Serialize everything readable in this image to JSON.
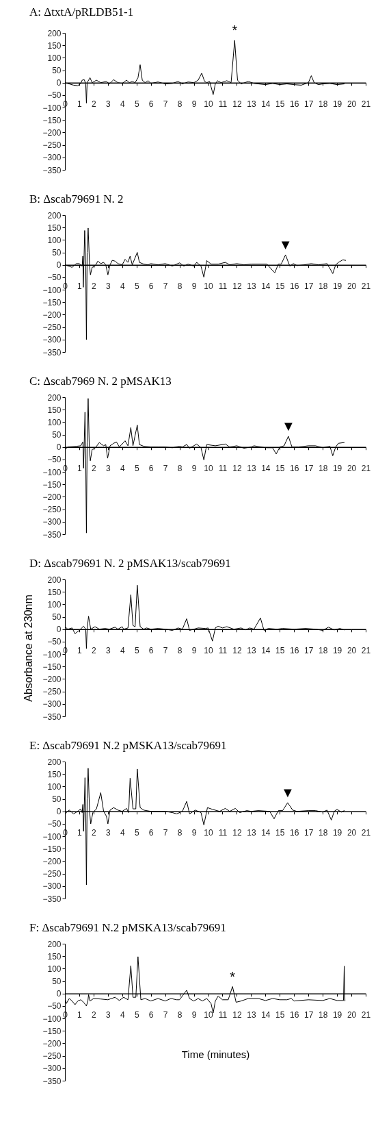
{
  "chart_data": [
    {
      "type": "line",
      "title": "A: ΔtxtA/pRLDB51-1",
      "xlim": [
        0,
        21
      ],
      "xticks": [
        0,
        1,
        2,
        3,
        4,
        5,
        6,
        7,
        8,
        9,
        10,
        11,
        12,
        13,
        14,
        15,
        16,
        17,
        18,
        19,
        20,
        21
      ],
      "ylim": [
        -350,
        200
      ],
      "yticks": [
        -350,
        -300,
        -250,
        -200,
        -150,
        -100,
        -50,
        0,
        50,
        100,
        150,
        200
      ],
      "series": [
        {
          "color": "#000000",
          "x": [
            0,
            0.3,
            0.6,
            0.9,
            1.1,
            1.2,
            1.35,
            1.45,
            1.5,
            1.55,
            1.75,
            1.9,
            2.2,
            2.5,
            2.9,
            3.1,
            3.4,
            3.7,
            4.0,
            4.3,
            4.5,
            4.7,
            4.9,
            5.1,
            5.25,
            5.4,
            5.6,
            5.8,
            6.0,
            6.5,
            7.0,
            7.5,
            7.9,
            8.2,
            8.6,
            9.0,
            9.3,
            9.55,
            9.75,
            9.9,
            10.1,
            10.35,
            10.5,
            10.65,
            10.9,
            11.3,
            11.6,
            11.85,
            12.05,
            12.3,
            12.8,
            13.2,
            14,
            14.5,
            15,
            15.5,
            16,
            16.5,
            17,
            17.2,
            17.4,
            17.7,
            18,
            18.5,
            19,
            19.5
          ],
          "values": [
            0,
            -5,
            -10,
            -12,
            -3,
            10,
            12,
            -5,
            -82,
            0,
            20,
            0,
            10,
            0,
            5,
            -5,
            12,
            0,
            -3,
            10,
            0,
            5,
            0,
            20,
            72,
            10,
            0,
            8,
            -3,
            3,
            -5,
            -3,
            5,
            -5,
            3,
            0,
            10,
            38,
            5,
            0,
            5,
            -48,
            -5,
            8,
            0,
            8,
            0,
            170,
            10,
            -5,
            5,
            -3,
            -8,
            -3,
            -8,
            -5,
            -8,
            -10,
            0,
            28,
            0,
            -8,
            -5,
            -3,
            -8,
            -5
          ]
        }
      ],
      "annotations": [
        {
          "text": "*",
          "x": 11.85,
          "y": 170
        }
      ]
    },
    {
      "type": "line",
      "title": "B: Δscab79691 N. 2",
      "xlim": [
        0,
        21
      ],
      "xticks": [
        0,
        1,
        2,
        3,
        4,
        5,
        6,
        7,
        8,
        9,
        10,
        11,
        12,
        13,
        14,
        15,
        16,
        17,
        18,
        19,
        20,
        21
      ],
      "ylim": [
        -350,
        200
      ],
      "yticks": [
        -350,
        -300,
        -250,
        -200,
        -150,
        -100,
        -50,
        0,
        50,
        100,
        150,
        200
      ],
      "series": [
        {
          "color": "#000000",
          "x": [
            0,
            0.5,
            0.8,
            1.0,
            1.2,
            1.25,
            1.28,
            1.38,
            1.45,
            1.5,
            1.55,
            1.62,
            1.72,
            1.78,
            1.9,
            2.1,
            2.3,
            2.5,
            2.7,
            2.85,
            3.0,
            3.15,
            3.3,
            3.5,
            3.7,
            4.0,
            4.2,
            4.4,
            4.55,
            4.7,
            5.05,
            5.2,
            5.5,
            5.8,
            6.0,
            6.5,
            7,
            7.5,
            8,
            8.3,
            8.6,
            9,
            9.2,
            9.5,
            9.7,
            9.9,
            10.2,
            10.7,
            11.2,
            11.5,
            12,
            12.5,
            13,
            14.1,
            14.65,
            14.9,
            15.1,
            15.4,
            15.7,
            15.95,
            16.2,
            16.7,
            17.2,
            17.7,
            18.3,
            18.7,
            18.9,
            19.1,
            19.4,
            19.6
          ],
          "values": [
            0,
            -10,
            5,
            5,
            -5,
            35,
            -90,
            138,
            0,
            -300,
            50,
            148,
            0,
            -40,
            -10,
            -5,
            15,
            5,
            10,
            0,
            -40,
            0,
            18,
            15,
            5,
            0,
            22,
            10,
            35,
            0,
            50,
            10,
            3,
            0,
            5,
            0,
            5,
            -5,
            8,
            -5,
            3,
            -5,
            10,
            -5,
            -50,
            17,
            3,
            3,
            10,
            0,
            5,
            0,
            3,
            3,
            -32,
            3,
            3,
            40,
            -5,
            5,
            -3,
            0,
            5,
            0,
            5,
            -35,
            0,
            10,
            20,
            18
          ]
        }
      ],
      "annotations": [
        {
          "text": "▼",
          "x": 15.4,
          "y": 40
        }
      ]
    },
    {
      "type": "line",
      "title": "C: Δscab7969 N. 2 pMSAK13",
      "xlim": [
        0,
        21
      ],
      "xticks": [
        0,
        1,
        2,
        3,
        4,
        5,
        6,
        7,
        8,
        9,
        10,
        11,
        12,
        13,
        14,
        15,
        16,
        17,
        18,
        19,
        20,
        21
      ],
      "ylim": [
        -350,
        200
      ],
      "yticks": [
        -350,
        -300,
        -250,
        -200,
        -150,
        -100,
        -50,
        0,
        50,
        100,
        150,
        200
      ],
      "series": [
        {
          "color": "#000000",
          "x": [
            0,
            0.2,
            0.8,
            1.1,
            1.25,
            1.3,
            1.4,
            1.45,
            1.5,
            1.55,
            1.62,
            1.7,
            1.77,
            1.9,
            2.1,
            2.4,
            2.7,
            2.85,
            2.98,
            3.15,
            3.4,
            3.6,
            3.8,
            4.2,
            4.4,
            4.6,
            4.75,
            5.05,
            5.2,
            5.5,
            6,
            6.5,
            7,
            7.5,
            8,
            8.2,
            8.5,
            8.7,
            9.2,
            9.5,
            9.7,
            9.9,
            10.5,
            11.2,
            11.5,
            12,
            12.5,
            13,
            13.2,
            14,
            14.5,
            14.75,
            15,
            15.3,
            15.6,
            15.85,
            16.3,
            17,
            17.5,
            18,
            18.5,
            18.7,
            18.9,
            19.1,
            19.5
          ],
          "values": [
            -10,
            0,
            3,
            5,
            20,
            -85,
            140,
            -50,
            -345,
            20,
            195,
            0,
            -55,
            -10,
            -5,
            18,
            5,
            10,
            -45,
            5,
            15,
            20,
            0,
            25,
            5,
            78,
            5,
            88,
            10,
            3,
            0,
            0,
            0,
            -3,
            3,
            0,
            10,
            -5,
            12,
            -3,
            -52,
            10,
            5,
            12,
            0,
            5,
            -5,
            0,
            5,
            -3,
            -3,
            -28,
            0,
            5,
            43,
            0,
            0,
            5,
            5,
            -3,
            3,
            -35,
            0,
            15,
            18
          ]
        }
      ],
      "annotations": [
        {
          "text": "▼",
          "x": 15.6,
          "y": 43
        }
      ]
    },
    {
      "type": "line",
      "title": "D: Δscab79691 N. 2 pMSAK13/scab79691",
      "ylabel": "Absorbance at 230nm",
      "xlim": [
        0,
        21
      ],
      "xticks": [
        0,
        1,
        2,
        3,
        4,
        5,
        6,
        7,
        8,
        9,
        10,
        11,
        12,
        13,
        14,
        15,
        16,
        17,
        18,
        19,
        20,
        21
      ],
      "ylim": [
        -350,
        200
      ],
      "yticks": [
        -350,
        -300,
        -250,
        -200,
        -150,
        -100,
        -50,
        0,
        50,
        100,
        150,
        200
      ],
      "series": [
        {
          "color": "#000000",
          "x": [
            0,
            0.2,
            0.5,
            0.7,
            1.0,
            1.3,
            1.45,
            1.5,
            1.55,
            1.65,
            1.8,
            2.1,
            2.4,
            2.8,
            3.1,
            3.5,
            3.7,
            4.0,
            4.1,
            4.4,
            4.6,
            4.75,
            4.9,
            5.05,
            5.25,
            5.5,
            5.7,
            6,
            6.5,
            7,
            7.5,
            7.9,
            8.2,
            8.5,
            8.7,
            9.3,
            9.8,
            10.0,
            10.3,
            10.5,
            10.7,
            11.0,
            11.3,
            11.8,
            12.3,
            12.6,
            12.9,
            13.2,
            13.65,
            13.9,
            14.2,
            14.8,
            15.2,
            16,
            16.8,
            17.5,
            18,
            18.4,
            18.8,
            19.2,
            19.5
          ],
          "values": [
            10,
            0,
            5,
            -18,
            -5,
            12,
            0,
            -78,
            0,
            52,
            0,
            10,
            0,
            3,
            0,
            8,
            0,
            10,
            0,
            5,
            138,
            15,
            10,
            177,
            10,
            0,
            5,
            0,
            3,
            0,
            -5,
            5,
            0,
            42,
            -5,
            5,
            3,
            5,
            -48,
            5,
            12,
            5,
            10,
            0,
            5,
            -3,
            5,
            0,
            45,
            -5,
            3,
            0,
            3,
            0,
            3,
            0,
            -5,
            8,
            -3,
            3,
            -3
          ]
        }
      ]
    },
    {
      "type": "line",
      "title": "E: Δscab79691 N.2 pMSKA13/scab79691",
      "xlim": [
        0,
        21
      ],
      "xticks": [
        0,
        1,
        2,
        3,
        4,
        5,
        6,
        7,
        8,
        9,
        10,
        11,
        12,
        13,
        14,
        15,
        16,
        17,
        18,
        19,
        20,
        21
      ],
      "ylim": [
        -350,
        200
      ],
      "yticks": [
        -350,
        -300,
        -250,
        -200,
        -150,
        -100,
        -50,
        0,
        50,
        100,
        150,
        200
      ],
      "series": [
        {
          "color": "#000000",
          "x": [
            0,
            0.3,
            0.6,
            0.9,
            1.1,
            1.2,
            1.25,
            1.3,
            1.4,
            1.45,
            1.5,
            1.55,
            1.62,
            1.72,
            1.8,
            1.95,
            2.2,
            2.5,
            2.7,
            2.9,
            3.0,
            3.15,
            3.4,
            3.7,
            4.0,
            4.3,
            4.45,
            4.55,
            4.75,
            4.95,
            5.05,
            5.25,
            5.5,
            6,
            6.5,
            7,
            7.5,
            7.8,
            8.2,
            8.5,
            8.7,
            9.1,
            9.5,
            9.7,
            9.95,
            10.3,
            10.8,
            11.2,
            11.5,
            11.9,
            12.2,
            12.7,
            13,
            13.5,
            14.3,
            14.6,
            14.9,
            15.2,
            15.55,
            15.9,
            16.2,
            17,
            17.5,
            18,
            18.3,
            18.6,
            18.8,
            19.0,
            19.3,
            19.5
          ],
          "values": [
            -10,
            5,
            -10,
            0,
            10,
            -5,
            28,
            -80,
            135,
            0,
            -295,
            50,
            173,
            0,
            -50,
            -5,
            10,
            75,
            0,
            -20,
            -50,
            5,
            15,
            5,
            0,
            12,
            -5,
            133,
            10,
            10,
            170,
            15,
            5,
            0,
            0,
            0,
            -5,
            -10,
            0,
            40,
            -10,
            5,
            -5,
            -55,
            15,
            8,
            0,
            12,
            0,
            12,
            -5,
            3,
            0,
            3,
            0,
            -30,
            3,
            3,
            35,
            5,
            0,
            3,
            3,
            -3,
            5,
            -35,
            0,
            8,
            -3,
            3
          ]
        }
      ],
      "annotations": [
        {
          "text": "▼",
          "x": 15.55,
          "y": 35
        }
      ]
    },
    {
      "type": "line",
      "title": "F: Δscab79691 N.2 pMSKA13/scab79691",
      "xlabel": "Time (minutes)",
      "xlim": [
        0,
        21
      ],
      "xticks": [
        0,
        1,
        2,
        3,
        4,
        5,
        6,
        7,
        8,
        9,
        10,
        11,
        12,
        13,
        14,
        15,
        16,
        17,
        18,
        19,
        20,
        21
      ],
      "ylim": [
        -350,
        200
      ],
      "yticks": [
        -350,
        -300,
        -250,
        -200,
        -150,
        -100,
        -50,
        0,
        50,
        100,
        150,
        200
      ],
      "series": [
        {
          "color": "#000000",
          "x": [
            0,
            0.1,
            0.3,
            0.5,
            0.7,
            0.9,
            1.1,
            1.3,
            1.5,
            1.6,
            1.65,
            1.75,
            2.0,
            2.5,
            3.0,
            3.5,
            3.8,
            4.1,
            4.4,
            4.6,
            4.75,
            4.95,
            5.1,
            5.3,
            5.6,
            6,
            6.5,
            7,
            7.4,
            7.8,
            8.0,
            8.5,
            8.7,
            9,
            9.3,
            9.6,
            9.9,
            10.2,
            10.35,
            10.5,
            10.7,
            11.0,
            11.4,
            11.7,
            11.95,
            12.3,
            12.8,
            13.5,
            14,
            14.5,
            15,
            15.5,
            15.8,
            16,
            17,
            18,
            18.5,
            19,
            19.45,
            19.5,
            19.55
          ],
          "values": [
            -20,
            -40,
            -20,
            -30,
            -45,
            -30,
            -25,
            -35,
            -50,
            -30,
            -5,
            -30,
            -20,
            -22,
            -25,
            -15,
            -28,
            -15,
            -25,
            112,
            -15,
            -15,
            148,
            -25,
            -20,
            -30,
            -20,
            -30,
            -20,
            -25,
            -25,
            13,
            -20,
            -30,
            -20,
            -30,
            -20,
            -40,
            -78,
            -30,
            -10,
            -25,
            -25,
            28,
            -35,
            -30,
            -20,
            -20,
            -28,
            -20,
            -25,
            -25,
            -20,
            -30,
            -25,
            -28,
            -20,
            -28,
            -28,
            110,
            -30
          ]
        }
      ],
      "annotations": [
        {
          "text": "*",
          "x": 11.7,
          "y": 28
        }
      ]
    }
  ]
}
